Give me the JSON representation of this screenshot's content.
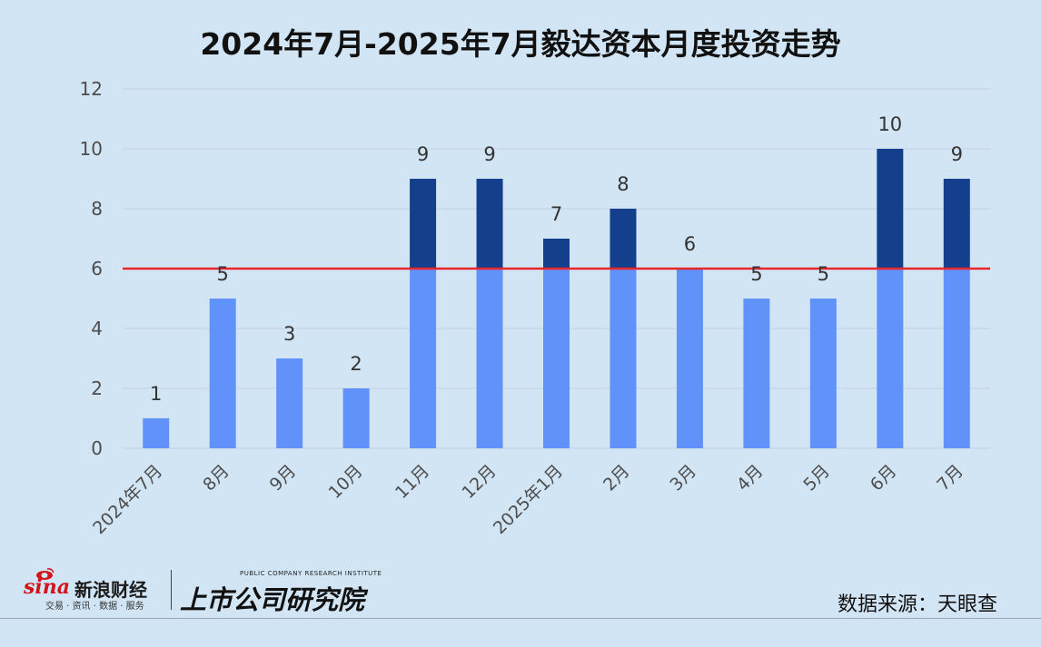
{
  "title": "2024年7月-2025年7月毅达资本月度投资走势",
  "source": "数据来源：天眼查",
  "branding": {
    "sina_word": "sina",
    "sina_name": "新浪财经",
    "sina_sub": "交易 · 资讯 · 数据 · 服务",
    "institute_en": "PUBLIC COMPANY RESEARCH INSTITUTE",
    "institute_cn": "上市公司研究院"
  },
  "colors": {
    "background": "#d2e5f4",
    "bar_base": "#6192f9",
    "bar_top": "#143f8c",
    "reference_line": "#e8262b",
    "grid": "#c2d3e2",
    "tick_text": "#4d4d4d",
    "label_text": "#333333"
  },
  "chart_data": {
    "type": "bar",
    "title": "2024年7月-2025年7月毅达资本月度投资走势",
    "categories": [
      "2024年7月",
      "8月",
      "9月",
      "10月",
      "11月",
      "12月",
      "2025年1月",
      "2月",
      "3月",
      "4月",
      "5月",
      "6月",
      "7月"
    ],
    "values": [
      1,
      5,
      3,
      2,
      9,
      9,
      7,
      8,
      6,
      5,
      5,
      10,
      9
    ],
    "data_labels": [
      "1",
      "5",
      "3",
      "2",
      "9",
      "9",
      "7",
      "8",
      "6",
      "5",
      "5",
      "10",
      "9"
    ],
    "reference_line": 6,
    "stacked_split_at": 6,
    "ylim": [
      0,
      12
    ],
    "yticks": [
      0,
      2,
      4,
      6,
      8,
      10,
      12
    ],
    "grid": true,
    "legend": "none",
    "xlabel": "",
    "ylabel": ""
  }
}
